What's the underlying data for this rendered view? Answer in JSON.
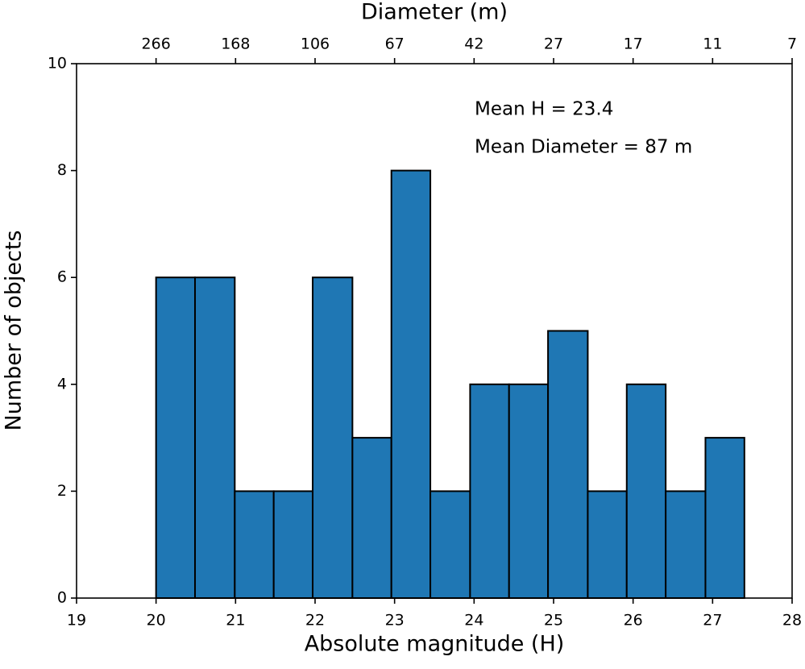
{
  "chart_data": {
    "type": "histogram",
    "xlabel": "Absolute magnitude (H)",
    "ylabel": "Number of objects",
    "x2label": "Diameter (m)",
    "bins": [
      20.0,
      20.49,
      20.99,
      21.48,
      21.97,
      22.47,
      22.96,
      23.45,
      23.95,
      24.44,
      24.93,
      25.43,
      25.92,
      26.41,
      26.91,
      27.4
    ],
    "counts": [
      6,
      6,
      2,
      2,
      6,
      3,
      8,
      2,
      4,
      4,
      5,
      2,
      4,
      2,
      3
    ],
    "color": "#1f77b4",
    "edgecolor": "#000000",
    "xlim": [
      19,
      28
    ],
    "xticks": [
      19,
      20,
      21,
      22,
      23,
      24,
      25,
      26,
      27,
      28
    ],
    "ylim": [
      0,
      10
    ],
    "yticks": [
      0,
      2,
      4,
      6,
      8,
      10
    ],
    "x2ticks": [
      {
        "value": 20,
        "label": "266"
      },
      {
        "value": 21,
        "label": "168"
      },
      {
        "value": 22,
        "label": "106"
      },
      {
        "value": 23,
        "label": "67"
      },
      {
        "value": 24,
        "label": "42"
      },
      {
        "value": 25,
        "label": "27"
      },
      {
        "value": 26,
        "label": "17"
      },
      {
        "value": 27,
        "label": "11"
      },
      {
        "value": 28,
        "label": "7"
      }
    ],
    "annotations": [
      "Mean H = 23.4",
      "Mean Diameter = 87 m"
    ]
  }
}
